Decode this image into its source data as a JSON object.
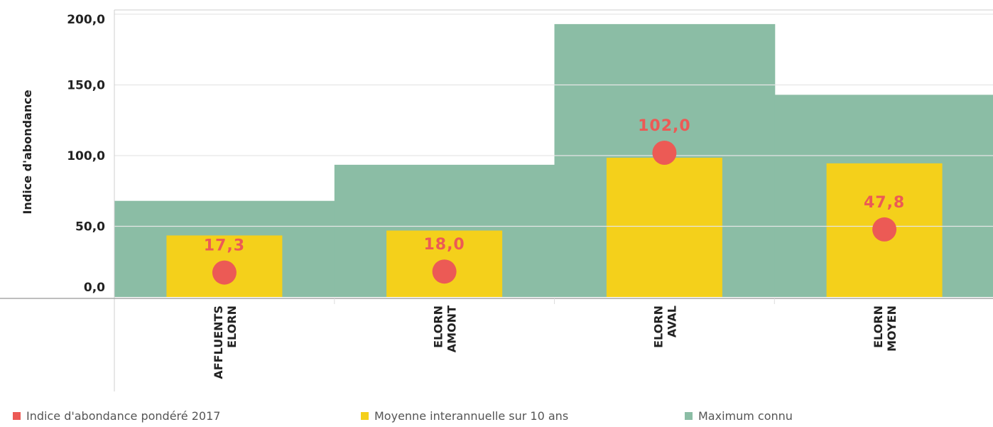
{
  "chart_data": {
    "type": "bar",
    "ylabel": "Indice d'abondance",
    "ylim": [
      0,
      200
    ],
    "yticks": [
      {
        "value": 0,
        "label": "0,0"
      },
      {
        "value": 50,
        "label": "50,0"
      },
      {
        "value": 100,
        "label": "100,0"
      },
      {
        "value": 150,
        "label": "150,0"
      },
      {
        "value": 200,
        "label": "200,0"
      }
    ],
    "grid": true,
    "legend_position": "bottom",
    "categories": [
      [
        "AFFLUENTS",
        "ELORN"
      ],
      [
        "ELORN",
        "AMONT"
      ],
      [
        "ELORN",
        "AVAL"
      ],
      [
        "ELORN",
        "MOYEN"
      ]
    ],
    "series": [
      {
        "name": "Indice d'abondance pondéré 2017",
        "mark": "point",
        "color": "#ec5a55",
        "values": [
          17.3,
          18.0,
          102.0,
          47.8
        ],
        "labels": [
          "17,3",
          "18,0",
          "102,0",
          "47,8"
        ]
      },
      {
        "name": "Moyenne interannuelle sur 10 ans",
        "mark": "bar",
        "color": "#f4d01b",
        "values": [
          43.5,
          47.0,
          98.5,
          94.5
        ]
      },
      {
        "name": "Maximum connu",
        "mark": "wide-bar",
        "color": "#8bbda5",
        "values": [
          68.0,
          93.5,
          193.0,
          143.0
        ]
      }
    ]
  }
}
